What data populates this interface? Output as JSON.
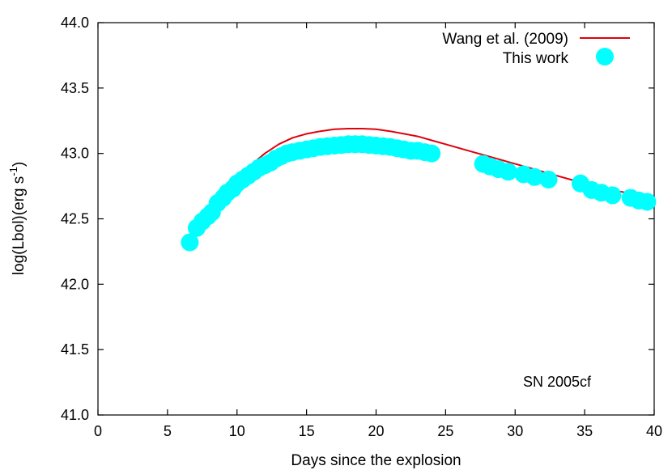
{
  "chart_data": {
    "type": "line",
    "xlabel": "Days since the explosion",
    "ylabel": {
      "main": "log(Lbol)(erg s",
      "sup": "-1",
      "close": ")"
    },
    "xlim": [
      0,
      40
    ],
    "ylim": [
      41.0,
      44.0
    ],
    "xticks": [
      "0",
      "5",
      "10",
      "15",
      "20",
      "25",
      "30",
      "35",
      "40"
    ],
    "yticks": [
      "41.0",
      "41.5",
      "42.0",
      "42.5",
      "43.0",
      "43.5",
      "44.0"
    ],
    "annotation": "SN 2005cf",
    "legend_position": "top-right",
    "grid": false,
    "series": [
      {
        "name": "Wang et al. (2009)",
        "style": "line",
        "color": "#e0000b",
        "x": [
          10.0,
          11.0,
          12.0,
          13.0,
          14.0,
          15.0,
          16.0,
          17.0,
          18.0,
          19.0,
          20.0,
          21.0,
          22.0,
          23.0,
          24.0,
          25.0,
          26.0,
          27.0,
          28.0,
          29.0,
          30.0,
          31.0,
          32.0,
          33.0,
          34.0,
          35.0,
          36.0,
          37.0,
          38.0,
          39.0,
          39.6
        ],
        "y": [
          42.8,
          42.91,
          43.0,
          43.07,
          43.12,
          43.15,
          43.17,
          43.185,
          43.19,
          43.19,
          43.185,
          43.17,
          43.15,
          43.13,
          43.1,
          43.07,
          43.04,
          43.01,
          42.98,
          42.95,
          42.92,
          42.89,
          42.86,
          42.83,
          42.8,
          42.77,
          42.75,
          42.72,
          42.7,
          42.67,
          42.64
        ]
      },
      {
        "name": "This work",
        "style": "points",
        "color": "#00ffff",
        "x": [
          6.6,
          7.1,
          7.5,
          7.9,
          8.2,
          8.6,
          9.0,
          9.3,
          9.7,
          10.0,
          10.4,
          10.8,
          11.2,
          11.6,
          12.0,
          12.4,
          12.8,
          13.2,
          13.6,
          14.0,
          14.5,
          15.0,
          15.5,
          16.0,
          16.5,
          17.0,
          17.5,
          18.0,
          18.5,
          19.0,
          19.5,
          20.0,
          20.5,
          21.0,
          21.5,
          22.0,
          22.5,
          23.0,
          23.5,
          24.0,
          27.7,
          28.2,
          28.8,
          29.5,
          30.6,
          31.4,
          32.4,
          34.7,
          35.5,
          36.2,
          37.0,
          38.3,
          38.9,
          39.5
        ],
        "y": [
          42.32,
          42.43,
          42.48,
          42.52,
          42.55,
          42.62,
          42.66,
          42.7,
          42.73,
          42.77,
          42.8,
          42.83,
          42.86,
          42.89,
          42.91,
          42.93,
          42.96,
          42.98,
          43.0,
          43.01,
          43.02,
          43.03,
          43.04,
          43.05,
          43.055,
          43.06,
          43.065,
          43.07,
          43.07,
          43.07,
          43.065,
          43.06,
          43.055,
          43.05,
          43.04,
          43.03,
          43.02,
          43.02,
          43.01,
          43.0,
          42.92,
          42.9,
          42.88,
          42.86,
          42.84,
          42.82,
          42.8,
          42.77,
          42.72,
          42.7,
          42.68,
          42.66,
          42.64,
          42.63
        ]
      }
    ]
  }
}
